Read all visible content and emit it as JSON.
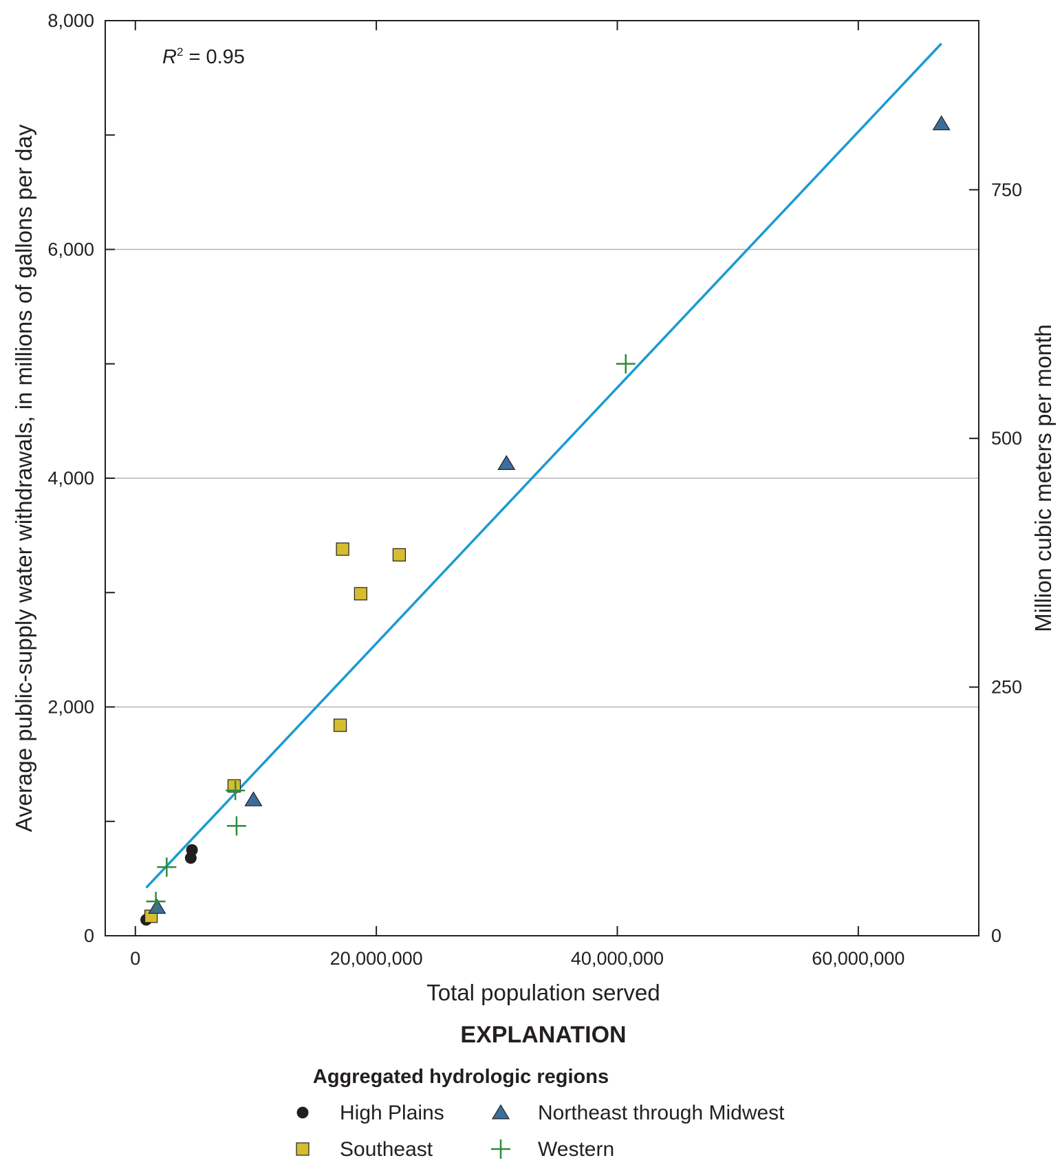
{
  "chart_data": {
    "type": "scatter",
    "title": "",
    "xlabel": "Total population served",
    "ylabel": "Average public-supply water withdrawals, in millions of gallons per day",
    "y2label": "Million cubic meters per month",
    "xlim": [
      -2500000,
      70000000
    ],
    "ylim": [
      0,
      8000
    ],
    "y2lim": [
      0,
      920
    ],
    "x_ticks": [
      {
        "value": 0,
        "label": "0"
      },
      {
        "value": 20000000,
        "label": "20,000,000"
      },
      {
        "value": 40000000,
        "label": "40,000,000"
      },
      {
        "value": 60000000,
        "label": "60,000,000"
      }
    ],
    "y_ticks": [
      {
        "value": 0,
        "label": "0"
      },
      {
        "value": 2000,
        "label": "2,000"
      },
      {
        "value": 4000,
        "label": "4,000"
      },
      {
        "value": 6000,
        "label": "6,000"
      },
      {
        "value": 8000,
        "label": "8,000"
      }
    ],
    "y2_ticks": [
      {
        "value": 0,
        "label": "0"
      },
      {
        "value": 250,
        "label": "250"
      },
      {
        "value": 500,
        "label": "500"
      },
      {
        "value": 750,
        "label": "750"
      }
    ],
    "gridlines_y": [
      2000,
      4000,
      6000
    ],
    "annotation": {
      "r_label": "R",
      "r_superscript": "2",
      "r_value": " = 0.95"
    },
    "trendline": {
      "x": [
        900000,
        66900000
      ],
      "y": [
        420,
        7800
      ],
      "color": "#1a9bd1"
    },
    "series": [
      {
        "name": "High Plains",
        "marker": "circle",
        "color": "#231f20",
        "x": [
          900000,
          4600000,
          4700000
        ],
        "y": [
          140,
          680,
          750
        ]
      },
      {
        "name": "Southeast",
        "marker": "square",
        "color": "#d4bd2f",
        "x": [
          1300000,
          8200000,
          17000000,
          17200000,
          18700000,
          21900000
        ],
        "y": [
          170,
          1310,
          1840,
          3380,
          2990,
          3330
        ]
      },
      {
        "name": "Northeast through Midwest",
        "marker": "triangle",
        "color": "#3c6e9b",
        "x": [
          1800000,
          9800000,
          30800000,
          66900000
        ],
        "y": [
          250,
          1190,
          4130,
          7100
        ]
      },
      {
        "name": "Western",
        "marker": "plus",
        "color": "#2e8b3a",
        "x": [
          1700000,
          2600000,
          8300000,
          8400000,
          40700000
        ],
        "y": [
          300,
          600,
          1270,
          960,
          5000
        ]
      }
    ],
    "legend": {
      "heading": "EXPLANATION",
      "subheading": "Aggregated hydrologic regions",
      "placement": "bottom"
    }
  }
}
